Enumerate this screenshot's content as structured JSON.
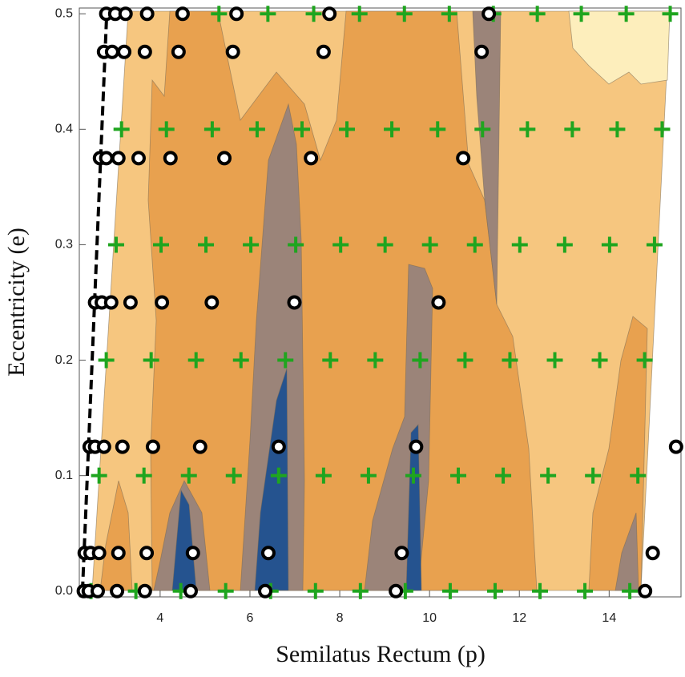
{
  "chart_data": {
    "type": "contour-scatter",
    "xlabel": "Semilatus Rectum (p)",
    "ylabel": "Eccentricity (e)",
    "xlim": [
      2.2,
      15.6
    ],
    "ylim": [
      -0.005,
      0.505
    ],
    "xticks": [
      4,
      6,
      8,
      10,
      12,
      14
    ],
    "yticks": [
      {
        "value": 0,
        "label": "0.0"
      },
      0.1,
      0.2,
      0.3,
      0.4,
      0.5
    ],
    "series": [
      {
        "marker": "dashed-line",
        "color": "#000000",
        "x": [
          2.27,
          2.81
        ],
        "y": [
          0,
          0.5
        ]
      },
      {
        "marker": "circle",
        "color": "#000000",
        "x": [
          2.8,
          3.0,
          3.23,
          3.71,
          4.5,
          5.7,
          7.77,
          11.32,
          2.75,
          2.93,
          3.2,
          3.66,
          4.41,
          5.62,
          7.64,
          11.16,
          2.66,
          2.8,
          3.07,
          3.52,
          4.23,
          5.43,
          7.36,
          10.75,
          2.55,
          2.7,
          2.91,
          3.34,
          4.04,
          5.15,
          6.99,
          10.2,
          2.43,
          2.55,
          2.75,
          3.16,
          3.84,
          4.89,
          6.64,
          9.7,
          15.49,
          2.32,
          2.45,
          2.64,
          3.07,
          3.7,
          4.73,
          6.41,
          9.38,
          14.97,
          2.3,
          2.41,
          2.61,
          3.04,
          3.66,
          4.68,
          6.34,
          9.25,
          14.8
        ],
        "y": [
          0.5,
          0.5,
          0.5,
          0.5,
          0.5,
          0.5,
          0.5,
          0.5,
          0.467,
          0.467,
          0.467,
          0.467,
          0.467,
          0.467,
          0.467,
          0.467,
          0.375,
          0.375,
          0.375,
          0.375,
          0.375,
          0.375,
          0.375,
          0.375,
          0.25,
          0.25,
          0.25,
          0.25,
          0.25,
          0.25,
          0.25,
          0.25,
          0.125,
          0.125,
          0.125,
          0.125,
          0.125,
          0.125,
          0.125,
          0.125,
          0.125,
          0.033,
          0.033,
          0.033,
          0.033,
          0.033,
          0.033,
          0.033,
          0.033,
          0.033,
          0,
          0,
          0,
          0,
          0,
          0,
          0,
          0,
          0
        ]
      },
      {
        "marker": "plus",
        "color": "#1fa51f",
        "x": [
          5.31,
          6.4,
          7.42,
          8.44,
          9.44,
          10.44,
          11.42,
          12.4,
          13.38,
          14.38,
          15.36,
          3.14,
          4.14,
          5.16,
          6.16,
          7.16,
          8.16,
          9.16,
          10.18,
          11.18,
          12.18,
          13.18,
          14.18,
          15.18,
          3.02,
          4.02,
          5.02,
          6.02,
          7.02,
          8.02,
          9.01,
          10.01,
          11.01,
          12.01,
          13.01,
          14.01,
          15.01,
          2.8,
          3.8,
          4.8,
          5.8,
          6.79,
          7.79,
          8.79,
          9.79,
          10.79,
          11.79,
          12.79,
          13.79,
          14.79,
          2.64,
          3.64,
          4.64,
          5.64,
          6.64,
          7.64,
          8.64,
          9.64,
          10.64,
          11.64,
          12.64,
          13.64,
          14.64,
          2.46,
          3.46,
          4.46,
          5.46,
          6.46,
          7.46,
          8.46,
          9.46,
          10.46,
          11.46,
          12.46,
          13.46,
          14.46
        ],
        "y": [
          0.5,
          0.5,
          0.5,
          0.5,
          0.5,
          0.5,
          0.5,
          0.5,
          0.5,
          0.5,
          0.5,
          0.4,
          0.4,
          0.4,
          0.4,
          0.4,
          0.4,
          0.4,
          0.4,
          0.4,
          0.4,
          0.4,
          0.4,
          0.4,
          0.3,
          0.3,
          0.3,
          0.3,
          0.3,
          0.3,
          0.3,
          0.3,
          0.3,
          0.3,
          0.3,
          0.3,
          0.3,
          0.2,
          0.2,
          0.2,
          0.2,
          0.2,
          0.2,
          0.2,
          0.2,
          0.2,
          0.2,
          0.2,
          0.2,
          0.2,
          0.1,
          0.1,
          0.1,
          0.1,
          0.1,
          0.1,
          0.1,
          0.1,
          0.1,
          0.1,
          0.1,
          0.1,
          0.1,
          0,
          0,
          0,
          0,
          0,
          0,
          0,
          0,
          0,
          0,
          0,
          0,
          0
        ]
      }
    ]
  }
}
